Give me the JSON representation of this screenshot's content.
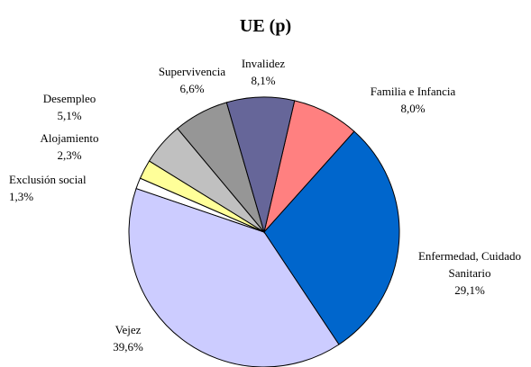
{
  "chart_data": {
    "type": "pie",
    "title": "UE (p)",
    "categories": [
      "Familia e Infancia",
      "Enfermedad, Cuidado Sanitario",
      "Vejez",
      "Exclusión social",
      "Alojamiento",
      "Desempleo",
      "Supervivencia",
      "Invalidez"
    ],
    "values": [
      8.0,
      29.1,
      39.6,
      1.3,
      2.3,
      5.1,
      6.6,
      8.1
    ],
    "value_labels": [
      "8,0%",
      "29,1%",
      "39,6%",
      "1,3%",
      "2,3%",
      "5,1%",
      "6,6%",
      "8,1%"
    ],
    "colors": [
      "#ff8080",
      "#0066cc",
      "#ccccff",
      "#ffffff",
      "#ffff99",
      "#c0c0c0",
      "#969696",
      "#666699"
    ]
  }
}
